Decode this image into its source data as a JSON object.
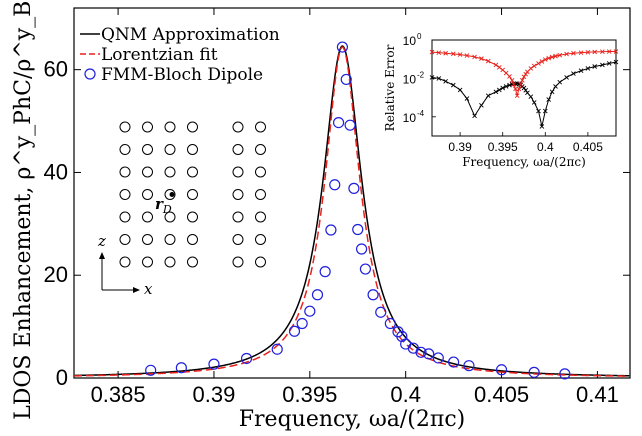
{
  "chart_data": [
    {
      "type": "line",
      "xlabel": "Frequency, ωa/(2πc)",
      "ylabel": "LDOS Enhancement, ρ^y_PhC/ρ^y_Bulk",
      "xlim": [
        0.3827,
        0.4117
      ],
      "ylim": [
        0,
        72
      ],
      "x_ticks": [
        0.385,
        0.39,
        0.395,
        0.4,
        0.405,
        0.41
      ],
      "x_tick_labels": [
        "0.385",
        "0.39",
        "0.395",
        "0.4",
        "0.405",
        "0.41"
      ],
      "y_ticks": [
        0,
        20,
        40,
        60
      ],
      "y_tick_labels": [
        "0",
        "20",
        "40",
        "60"
      ],
      "legend": {
        "position": "top-left",
        "entries": [
          "QNM Approximation",
          "Lorentzian fit",
          "FMM-Bloch Dipole"
        ]
      },
      "series": [
        {
          "name": "QNM Approximation",
          "style": "solid-line",
          "color": "#000000",
          "peak_x": 0.3967,
          "peak_y": 64.6,
          "half_width": 0.00123,
          "background": 0.0,
          "x_range": [
            0.3827,
            0.4117
          ]
        },
        {
          "name": "Lorentzian fit",
          "style": "dashed-line",
          "color": "#e8221c",
          "peak_x": 0.3967,
          "peak_y": 64.4,
          "half_width": 0.00112,
          "background": 0.0,
          "x_range": [
            0.3827,
            0.4117
          ]
        },
        {
          "name": "FMM-Bloch Dipole",
          "style": "markers",
          "color": "#2020dd",
          "x": [
            0.3867,
            0.3883,
            0.39,
            0.3917,
            0.3933,
            0.3942,
            0.3946,
            0.395,
            0.3954,
            0.3958,
            0.3961,
            0.3963,
            0.3965,
            0.3967,
            0.3969,
            0.3971,
            0.3973,
            0.3975,
            0.3977,
            0.3979,
            0.3983,
            0.3987,
            0.3992,
            0.3996,
            0.3998,
            0.4,
            0.4004,
            0.4008,
            0.4012,
            0.4017,
            0.4025,
            0.4033,
            0.405,
            0.4067,
            0.4083
          ],
          "y": [
            1.5,
            2.0,
            2.7,
            3.8,
            5.6,
            9.1,
            10.6,
            13.0,
            16.2,
            20.7,
            28.8,
            37.6,
            49.7,
            64.4,
            58.1,
            49.2,
            36.9,
            28.9,
            25.1,
            21.2,
            16.2,
            12.8,
            10.6,
            9.0,
            8.1,
            6.6,
            5.8,
            5.0,
            4.7,
            3.9,
            3.1,
            2.4,
            1.6,
            1.1,
            0.8
          ]
        }
      ]
    },
    {
      "type": "line",
      "xlabel": "Frequency, ωa/(2πc)",
      "ylabel": "Relative Error",
      "xlim": [
        0.3867,
        0.4083
      ],
      "ylim_log10": [
        -5,
        0
      ],
      "log_scale_y": true,
      "x_ticks": [
        0.39,
        0.395,
        0.4,
        0.405
      ],
      "x_tick_labels": [
        "0.39",
        "0.395",
        "0.4",
        "0.405"
      ],
      "y_ticks_log10": [
        -4,
        -2,
        0
      ],
      "y_tick_base": "10",
      "y_tick_exponents": [
        "-4",
        "-2",
        "0"
      ],
      "series": [
        {
          "name": "",
          "color": "#000000",
          "marker": "x",
          "x": [
            0.3867,
            0.3875,
            0.3883,
            0.3892,
            0.39,
            0.3908,
            0.3917,
            0.3925,
            0.3933,
            0.3942,
            0.3946,
            0.395,
            0.3954,
            0.3958,
            0.3961,
            0.3963,
            0.3965,
            0.3967,
            0.3969,
            0.3971,
            0.3973,
            0.3975,
            0.3977,
            0.3979,
            0.3983,
            0.3987,
            0.3992,
            0.3996,
            0.4,
            0.4004,
            0.4008,
            0.4012,
            0.4017,
            0.4025,
            0.4033,
            0.4042,
            0.405,
            0.4058,
            0.4067,
            0.4075,
            0.4083
          ],
          "y_log10": [
            -1.95,
            -2.0,
            -2.15,
            -2.35,
            -2.6,
            -3.05,
            -3.95,
            -3.4,
            -2.9,
            -2.7,
            -2.6,
            -2.5,
            -2.42,
            -2.35,
            -2.3,
            -2.28,
            -2.27,
            -2.27,
            -2.3,
            -2.35,
            -2.42,
            -2.5,
            -2.62,
            -2.75,
            -2.95,
            -3.25,
            -3.7,
            -4.5,
            -3.7,
            -3.1,
            -2.7,
            -2.42,
            -2.2,
            -1.95,
            -1.75,
            -1.6,
            -1.48,
            -1.38,
            -1.3,
            -1.22,
            -1.15
          ]
        },
        {
          "name": "",
          "color": "#e8221c",
          "marker": "x",
          "x": [
            0.3867,
            0.3875,
            0.3883,
            0.3892,
            0.39,
            0.3908,
            0.3917,
            0.3925,
            0.3933,
            0.3942,
            0.3946,
            0.395,
            0.3954,
            0.3958,
            0.3961,
            0.3963,
            0.3965,
            0.3967,
            0.3969,
            0.3971,
            0.3973,
            0.3975,
            0.3977,
            0.3979,
            0.3983,
            0.3987,
            0.3992,
            0.3996,
            0.4,
            0.4004,
            0.4008,
            0.4012,
            0.4017,
            0.4025,
            0.4033,
            0.4042,
            0.405,
            0.4058,
            0.4067,
            0.4075,
            0.4083
          ],
          "y_log10": [
            -0.63,
            -0.66,
            -0.69,
            -0.72,
            -0.76,
            -0.81,
            -0.88,
            -0.97,
            -1.1,
            -1.3,
            -1.42,
            -1.56,
            -1.72,
            -1.9,
            -2.1,
            -2.3,
            -2.55,
            -2.9,
            -2.55,
            -2.3,
            -2.1,
            -1.92,
            -1.78,
            -1.66,
            -1.48,
            -1.35,
            -1.22,
            -1.12,
            -1.02,
            -0.95,
            -0.89,
            -0.84,
            -0.79,
            -0.73,
            -0.69,
            -0.66,
            -0.64,
            -0.62,
            -0.61,
            -0.6,
            -0.6
          ]
        }
      ]
    }
  ],
  "schematic": {
    "label_r": "r",
    "label_r_sub": "D",
    "label_z": "z",
    "label_x": "x",
    "left_block_columns": 4,
    "right_block_columns": 2,
    "rows": 7,
    "dipole_row": 3
  }
}
